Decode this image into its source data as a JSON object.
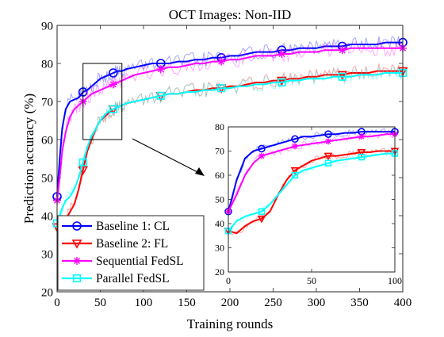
{
  "chart_data": {
    "type": "line",
    "title": "OCT Images: Non-IID",
    "xlabel": "Training rounds",
    "ylabel": "Prediction accuracy (%)",
    "xlim": [
      0,
      400
    ],
    "ylim": [
      20,
      90
    ],
    "xticks": [
      0,
      50,
      100,
      150,
      200,
      250,
      300,
      350,
      400
    ],
    "yticks": [
      20,
      30,
      40,
      50,
      60,
      70,
      80,
      90
    ],
    "grid": false,
    "legend_position": "bottom-left",
    "zoom_box": {
      "x": [
        30,
        75
      ],
      "y": [
        60,
        80
      ]
    },
    "series": [
      {
        "name": "Baseline 1: CL",
        "color": "#0000ff",
        "marker": "circle",
        "x": [
          0,
          3,
          6,
          10,
          15,
          20,
          25,
          30,
          35,
          40,
          45,
          50,
          55,
          60,
          65,
          70,
          75,
          80,
          90,
          100,
          110,
          120,
          130,
          140,
          150,
          160,
          170,
          180,
          190,
          200,
          210,
          220,
          230,
          240,
          250,
          260,
          270,
          280,
          290,
          300,
          310,
          320,
          330,
          340,
          350,
          360,
          370,
          380,
          390,
          400
        ],
        "y": [
          45,
          55,
          63,
          68,
          70,
          70.5,
          71,
          72.5,
          73,
          74,
          75,
          76,
          76.5,
          77,
          77.5,
          78,
          78,
          78.5,
          79,
          79.5,
          80,
          80,
          80,
          80.5,
          80.5,
          81,
          81,
          81.5,
          81.5,
          82,
          82,
          82.5,
          83,
          83,
          83,
          83.5,
          83.5,
          84,
          84,
          84,
          84.5,
          84.5,
          84.5,
          85,
          85,
          85,
          85,
          85.5,
          85.5,
          85.5
        ]
      },
      {
        "name": "Baseline 2: FL",
        "color": "#ff0000",
        "marker": "triangle-down",
        "x": [
          0,
          3,
          6,
          10,
          15,
          20,
          25,
          30,
          35,
          40,
          45,
          50,
          55,
          60,
          65,
          70,
          75,
          80,
          90,
          100,
          110,
          120,
          130,
          140,
          150,
          160,
          170,
          180,
          190,
          200,
          210,
          220,
          230,
          240,
          250,
          260,
          270,
          280,
          290,
          300,
          310,
          320,
          330,
          340,
          350,
          360,
          370,
          380,
          390,
          400
        ],
        "y": [
          37,
          37,
          38,
          39,
          41,
          43,
          47,
          52,
          57,
          60,
          63,
          65,
          66,
          67,
          68,
          68.5,
          69,
          69.5,
          70,
          70.5,
          71,
          71.5,
          72,
          72,
          72.5,
          73,
          73,
          73.5,
          73.5,
          74,
          74,
          74.5,
          75,
          75,
          75.5,
          75.5,
          76,
          76,
          76.5,
          76.5,
          77,
          77,
          77,
          77.5,
          77.5,
          77.5,
          78,
          78,
          78,
          78
        ]
      },
      {
        "name": "Sequential FedSL",
        "color": "#ff00ff",
        "marker": "asterisk",
        "x": [
          0,
          3,
          6,
          10,
          15,
          20,
          25,
          30,
          35,
          40,
          45,
          50,
          55,
          60,
          65,
          70,
          75,
          80,
          90,
          100,
          110,
          120,
          130,
          140,
          150,
          160,
          170,
          180,
          190,
          200,
          210,
          220,
          230,
          240,
          250,
          260,
          270,
          280,
          290,
          300,
          310,
          320,
          330,
          340,
          350,
          360,
          370,
          380,
          390,
          400
        ],
        "y": [
          44,
          50,
          57,
          62,
          66,
          68,
          69,
          70,
          71,
          72,
          72.5,
          73,
          73.5,
          74,
          74.5,
          75,
          75.5,
          76,
          77,
          77.5,
          78,
          78.5,
          79,
          79,
          79.5,
          80,
          80,
          80.5,
          80.5,
          81,
          81,
          81.5,
          82,
          82,
          82,
          82.5,
          82.5,
          83,
          83,
          83,
          83.5,
          83.5,
          83.5,
          84,
          84,
          84,
          84,
          84,
          84,
          84
        ]
      },
      {
        "name": "Parallel FedSL",
        "color": "#00ffff",
        "marker": "square",
        "x": [
          0,
          3,
          6,
          10,
          15,
          20,
          25,
          30,
          35,
          40,
          45,
          50,
          55,
          60,
          65,
          70,
          75,
          80,
          90,
          100,
          110,
          120,
          130,
          140,
          150,
          160,
          170,
          180,
          190,
          200,
          210,
          220,
          230,
          240,
          250,
          260,
          270,
          280,
          290,
          300,
          310,
          320,
          330,
          340,
          350,
          360,
          370,
          380,
          390,
          400
        ],
        "y": [
          38,
          40,
          42,
          44,
          45,
          47,
          50,
          54,
          58,
          61,
          63,
          65,
          66.5,
          67.5,
          68,
          68.5,
          69,
          69.5,
          70,
          70.5,
          71,
          71.5,
          72,
          72,
          72.5,
          72.5,
          73,
          73,
          73.5,
          73.5,
          74,
          74,
          74.5,
          74.5,
          75,
          75,
          75.5,
          75.5,
          76,
          76,
          76,
          76.5,
          76.5,
          76.5,
          77,
          77,
          77,
          77.5,
          77.5,
          77.5
        ]
      }
    ],
    "inset": {
      "xlim": [
        0,
        100
      ],
      "ylim": [
        20,
        80
      ],
      "xticks": [
        0,
        50,
        100
      ],
      "yticks": [
        20,
        30,
        40,
        50,
        60,
        70,
        80
      ],
      "series": [
        {
          "name": "Baseline 1: CL",
          "x": [
            0,
            5,
            10,
            15,
            20,
            25,
            30,
            35,
            40,
            45,
            50,
            55,
            60,
            65,
            70,
            75,
            80,
            85,
            90,
            95,
            100
          ],
          "y": [
            45,
            58,
            67,
            70,
            71,
            72,
            73,
            74,
            75,
            76,
            76,
            76.5,
            77,
            77,
            77.5,
            77.5,
            78,
            78,
            78,
            78,
            78
          ]
        },
        {
          "name": "Baseline 2: FL",
          "x": [
            0,
            5,
            10,
            15,
            20,
            25,
            30,
            35,
            40,
            45,
            50,
            55,
            60,
            65,
            70,
            75,
            80,
            85,
            90,
            95,
            100
          ],
          "y": [
            37,
            36,
            39,
            41,
            42,
            45,
            52,
            58,
            62,
            64,
            66,
            67,
            68,
            68,
            68.5,
            69,
            69.5,
            69.5,
            70,
            70,
            70
          ]
        },
        {
          "name": "Sequential FedSL",
          "x": [
            0,
            5,
            10,
            15,
            20,
            25,
            30,
            35,
            40,
            45,
            50,
            55,
            60,
            65,
            70,
            75,
            80,
            85,
            90,
            95,
            100
          ],
          "y": [
            45,
            52,
            60,
            65,
            68,
            69,
            70,
            71,
            72,
            72.5,
            73,
            73.5,
            74,
            74.5,
            75,
            75.5,
            76,
            76,
            76.5,
            77,
            77
          ]
        },
        {
          "name": "Parallel FedSL",
          "x": [
            0,
            5,
            10,
            15,
            20,
            25,
            30,
            35,
            40,
            45,
            50,
            55,
            60,
            65,
            70,
            75,
            80,
            85,
            90,
            95,
            100
          ],
          "y": [
            37,
            41,
            43,
            44,
            45,
            48,
            52,
            56,
            60,
            62,
            63,
            64,
            65,
            66,
            66.5,
            67,
            67.5,
            68,
            68.5,
            69,
            69
          ]
        }
      ]
    }
  }
}
